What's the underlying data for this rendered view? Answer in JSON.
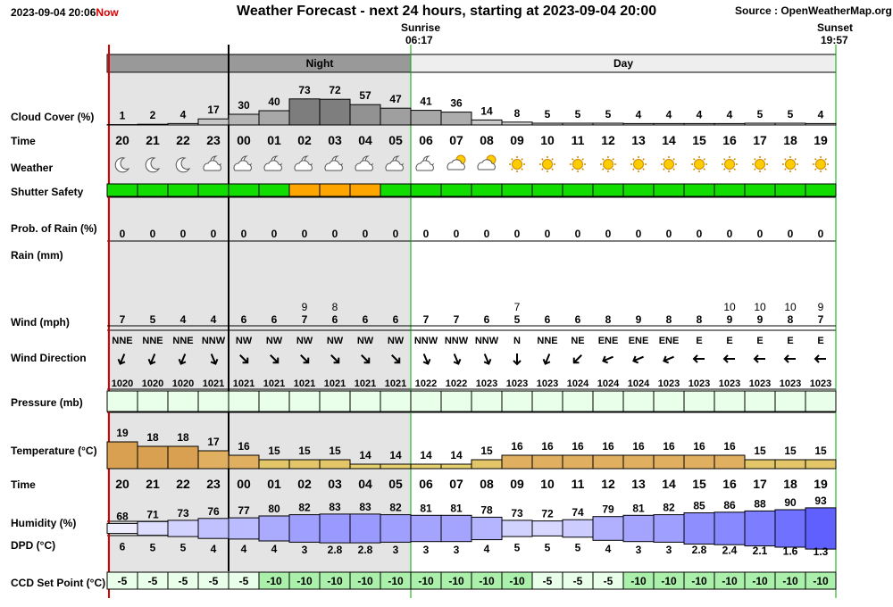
{
  "header": {
    "datetime": "2023-09-04 20:06",
    "now_label": "Now",
    "title": "Weather Forecast - next 24 hours, starting at 2023-09-04 20:00",
    "source": "Source : OpenWeatherMap.org",
    "sunrise_label": "Sunrise",
    "sunrise_time": "06:17",
    "sunset_label": "Sunset",
    "sunset_time": "19:57",
    "night_label": "Night",
    "day_label": "Day"
  },
  "row_labels": {
    "cloud": "Cloud Cover (%)",
    "time": "Time",
    "weather": "Weather",
    "shutter": "Shutter Safety",
    "rain_prob": "Prob. of Rain (%)",
    "rain": "Rain (mm)",
    "wind": "Wind (mph)",
    "wind_dir": "Wind Direction",
    "pressure": "Pressure (mb)",
    "temperature": "Temperature (°C)",
    "time2": "Time",
    "humidity": "Humidity (%)",
    "dpd": "DPD (°C)",
    "ccd": "CCD Set Point (°C)"
  },
  "colors": {
    "night_bg": "#e4e4e4",
    "night_header": "#999999",
    "day_header": "#eeeeee",
    "safe": "#11dd00",
    "caution": "#ffa500",
    "now_line": "#dd0000",
    "sunset_line": "#00aa00",
    "pressure_bg": "#eaffea",
    "ccd_bg": "#eaffea",
    "ccd_dark_bg": "#aaf0aa",
    "sun": "#ffcc00",
    "humidity_low": "#ffffff",
    "humidity_high": "#5555ff"
  },
  "chart_data": {
    "type": "table",
    "hours": [
      "20",
      "21",
      "22",
      "23",
      "00",
      "01",
      "02",
      "03",
      "04",
      "05",
      "06",
      "07",
      "08",
      "09",
      "10",
      "11",
      "12",
      "13",
      "14",
      "15",
      "16",
      "17",
      "18",
      "19"
    ],
    "cloud_cover": [
      1,
      2,
      4,
      17,
      30,
      40,
      73,
      72,
      57,
      47,
      41,
      36,
      14,
      8,
      5,
      5,
      5,
      4,
      4,
      4,
      4,
      5,
      5,
      4
    ],
    "weather_icons": [
      "moon-icon",
      "moon-icon",
      "moon-icon",
      "moon-cloud-icon",
      "moon-cloud-icon",
      "moon-cloud-icon",
      "moon-cloud-icon",
      "moon-cloud-icon",
      "moon-cloud-icon",
      "moon-cloud-icon",
      "moon-cloud-icon",
      "sun-cloud-icon",
      "sun-cloud-icon",
      "sun-icon",
      "sun-icon",
      "sun-icon",
      "sun-icon",
      "sun-icon",
      "sun-icon",
      "sun-icon",
      "sun-icon",
      "sun-icon",
      "sun-icon",
      "sun-icon"
    ],
    "shutter_safety": [
      "safe",
      "safe",
      "safe",
      "safe",
      "safe",
      "safe",
      "caution",
      "caution",
      "caution",
      "safe",
      "safe",
      "safe",
      "safe",
      "safe",
      "safe",
      "safe",
      "safe",
      "safe",
      "safe",
      "safe",
      "safe",
      "safe",
      "safe",
      "safe"
    ],
    "rain_probability": [
      0,
      0,
      0,
      0,
      0,
      0,
      0,
      0,
      0,
      0,
      0,
      0,
      0,
      0,
      0,
      0,
      0,
      0,
      0,
      0,
      0,
      0,
      0,
      0
    ],
    "wind_speed": [
      7,
      5,
      4,
      4,
      6,
      6,
      7,
      6,
      6,
      6,
      7,
      7,
      6,
      5,
      6,
      6,
      8,
      9,
      8,
      8,
      9,
      9,
      8,
      7
    ],
    "wind_gust": [
      "",
      "",
      "",
      "",
      "",
      "",
      "9",
      "8",
      "",
      "",
      "",
      "",
      "",
      "7",
      "",
      "",
      "",
      "",
      "",
      "",
      "10",
      "10",
      "10",
      "9"
    ],
    "wind_direction": [
      "NNE",
      "NNE",
      "NNE",
      "NNW",
      "NW",
      "NW",
      "NW",
      "NW",
      "NW",
      "NW",
      "NNW",
      "NNW",
      "NNW",
      "N",
      "NNE",
      "NE",
      "ENE",
      "ENE",
      "ENE",
      "E",
      "E",
      "E",
      "E",
      "E"
    ],
    "pressure": [
      1020,
      1020,
      1020,
      1021,
      1021,
      1021,
      1021,
      1021,
      1021,
      1021,
      1022,
      1022,
      1023,
      1023,
      1023,
      1024,
      1024,
      1024,
      1023,
      1023,
      1023,
      1023,
      1023,
      1023
    ],
    "temperature": [
      19,
      18,
      18,
      17,
      16,
      15,
      15,
      15,
      14,
      14,
      14,
      14,
      15,
      16,
      16,
      16,
      16,
      16,
      16,
      16,
      16,
      15,
      15,
      15
    ],
    "humidity": [
      68,
      71,
      73,
      76,
      77,
      80,
      82,
      83,
      83,
      82,
      81,
      81,
      78,
      73,
      72,
      74,
      79,
      81,
      82,
      85,
      86,
      88,
      90,
      93
    ],
    "dpd": [
      "6",
      "5",
      "5",
      "4",
      "4",
      "4",
      "3",
      "2.8",
      "2.8",
      "3",
      "3",
      "3",
      "4",
      "5",
      "5",
      "5",
      "4",
      "3",
      "3",
      "2.8",
      "2.4",
      "2.1",
      "1.6",
      "1.3"
    ],
    "ccd_set_point": [
      -5,
      -5,
      -5,
      -5,
      -5,
      -10,
      -10,
      -10,
      -10,
      -10,
      -10,
      -10,
      -10,
      -10,
      -5,
      -5,
      -5,
      -10,
      -10,
      -10,
      -10,
      -10,
      -10,
      -10
    ]
  }
}
